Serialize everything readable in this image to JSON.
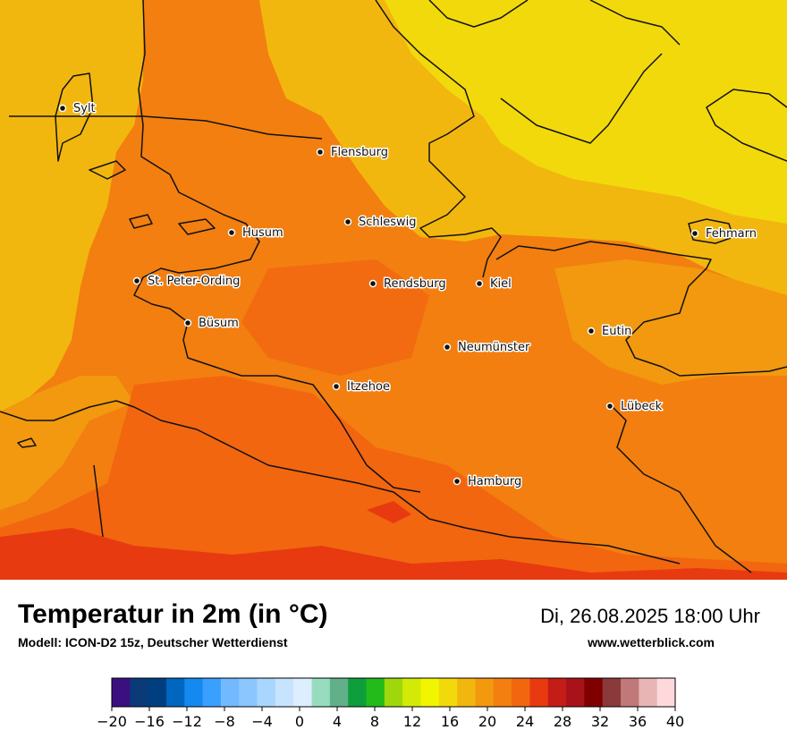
{
  "map": {
    "cities": [
      {
        "name": "Sylt"
      },
      {
        "name": "Flensburg"
      },
      {
        "name": "Husum"
      },
      {
        "name": "Schleswig"
      },
      {
        "name": "Fehmarn"
      },
      {
        "name": "St. Peter-Ording"
      },
      {
        "name": "Rendsburg"
      },
      {
        "name": "Kiel"
      },
      {
        "name": "Büsum"
      },
      {
        "name": "Neumünster"
      },
      {
        "name": "Eutin"
      },
      {
        "name": "Itzehoe"
      },
      {
        "name": "Lübeck"
      },
      {
        "name": "Hamburg"
      }
    ]
  },
  "footer": {
    "title": "Temperatur in 2m (in °C)",
    "model": "Modell: ICON-D2 15z, Deutscher Wetterdienst",
    "datetime": "Di, 26.08.2025 18:00 Uhr",
    "website": "www.wetterblick.com"
  },
  "legend": {
    "colors": [
      "#3b0f80",
      "#0a3a78",
      "#003f7f",
      "#0066c0",
      "#1489f0",
      "#3aa0ff",
      "#73b9ff",
      "#8cc6ff",
      "#a9d6ff",
      "#c7e4ff",
      "#ddeeff",
      "#98dcc0",
      "#62b08a",
      "#0e9e3c",
      "#22bb1a",
      "#9ed80c",
      "#d2ea06",
      "#f2f500",
      "#f2d90c",
      "#f2b70e",
      "#f2990f",
      "#f27f10",
      "#f26610",
      "#e83a10",
      "#c41d18",
      "#a8121a",
      "#800000",
      "#8a3a3a",
      "#c07878",
      "#e8b4b4",
      "#ffd8dc"
    ],
    "tick_values": [
      -20,
      -16,
      -12,
      -8,
      -4,
      0,
      4,
      8,
      12,
      16,
      20,
      24,
      28,
      32,
      36,
      40
    ],
    "tick_labels": [
      "−20",
      "−16",
      "−12",
      "−8",
      "−4",
      "0",
      "4",
      "8",
      "12",
      "16",
      "20",
      "24",
      "28",
      "32",
      "36",
      "40"
    ]
  }
}
